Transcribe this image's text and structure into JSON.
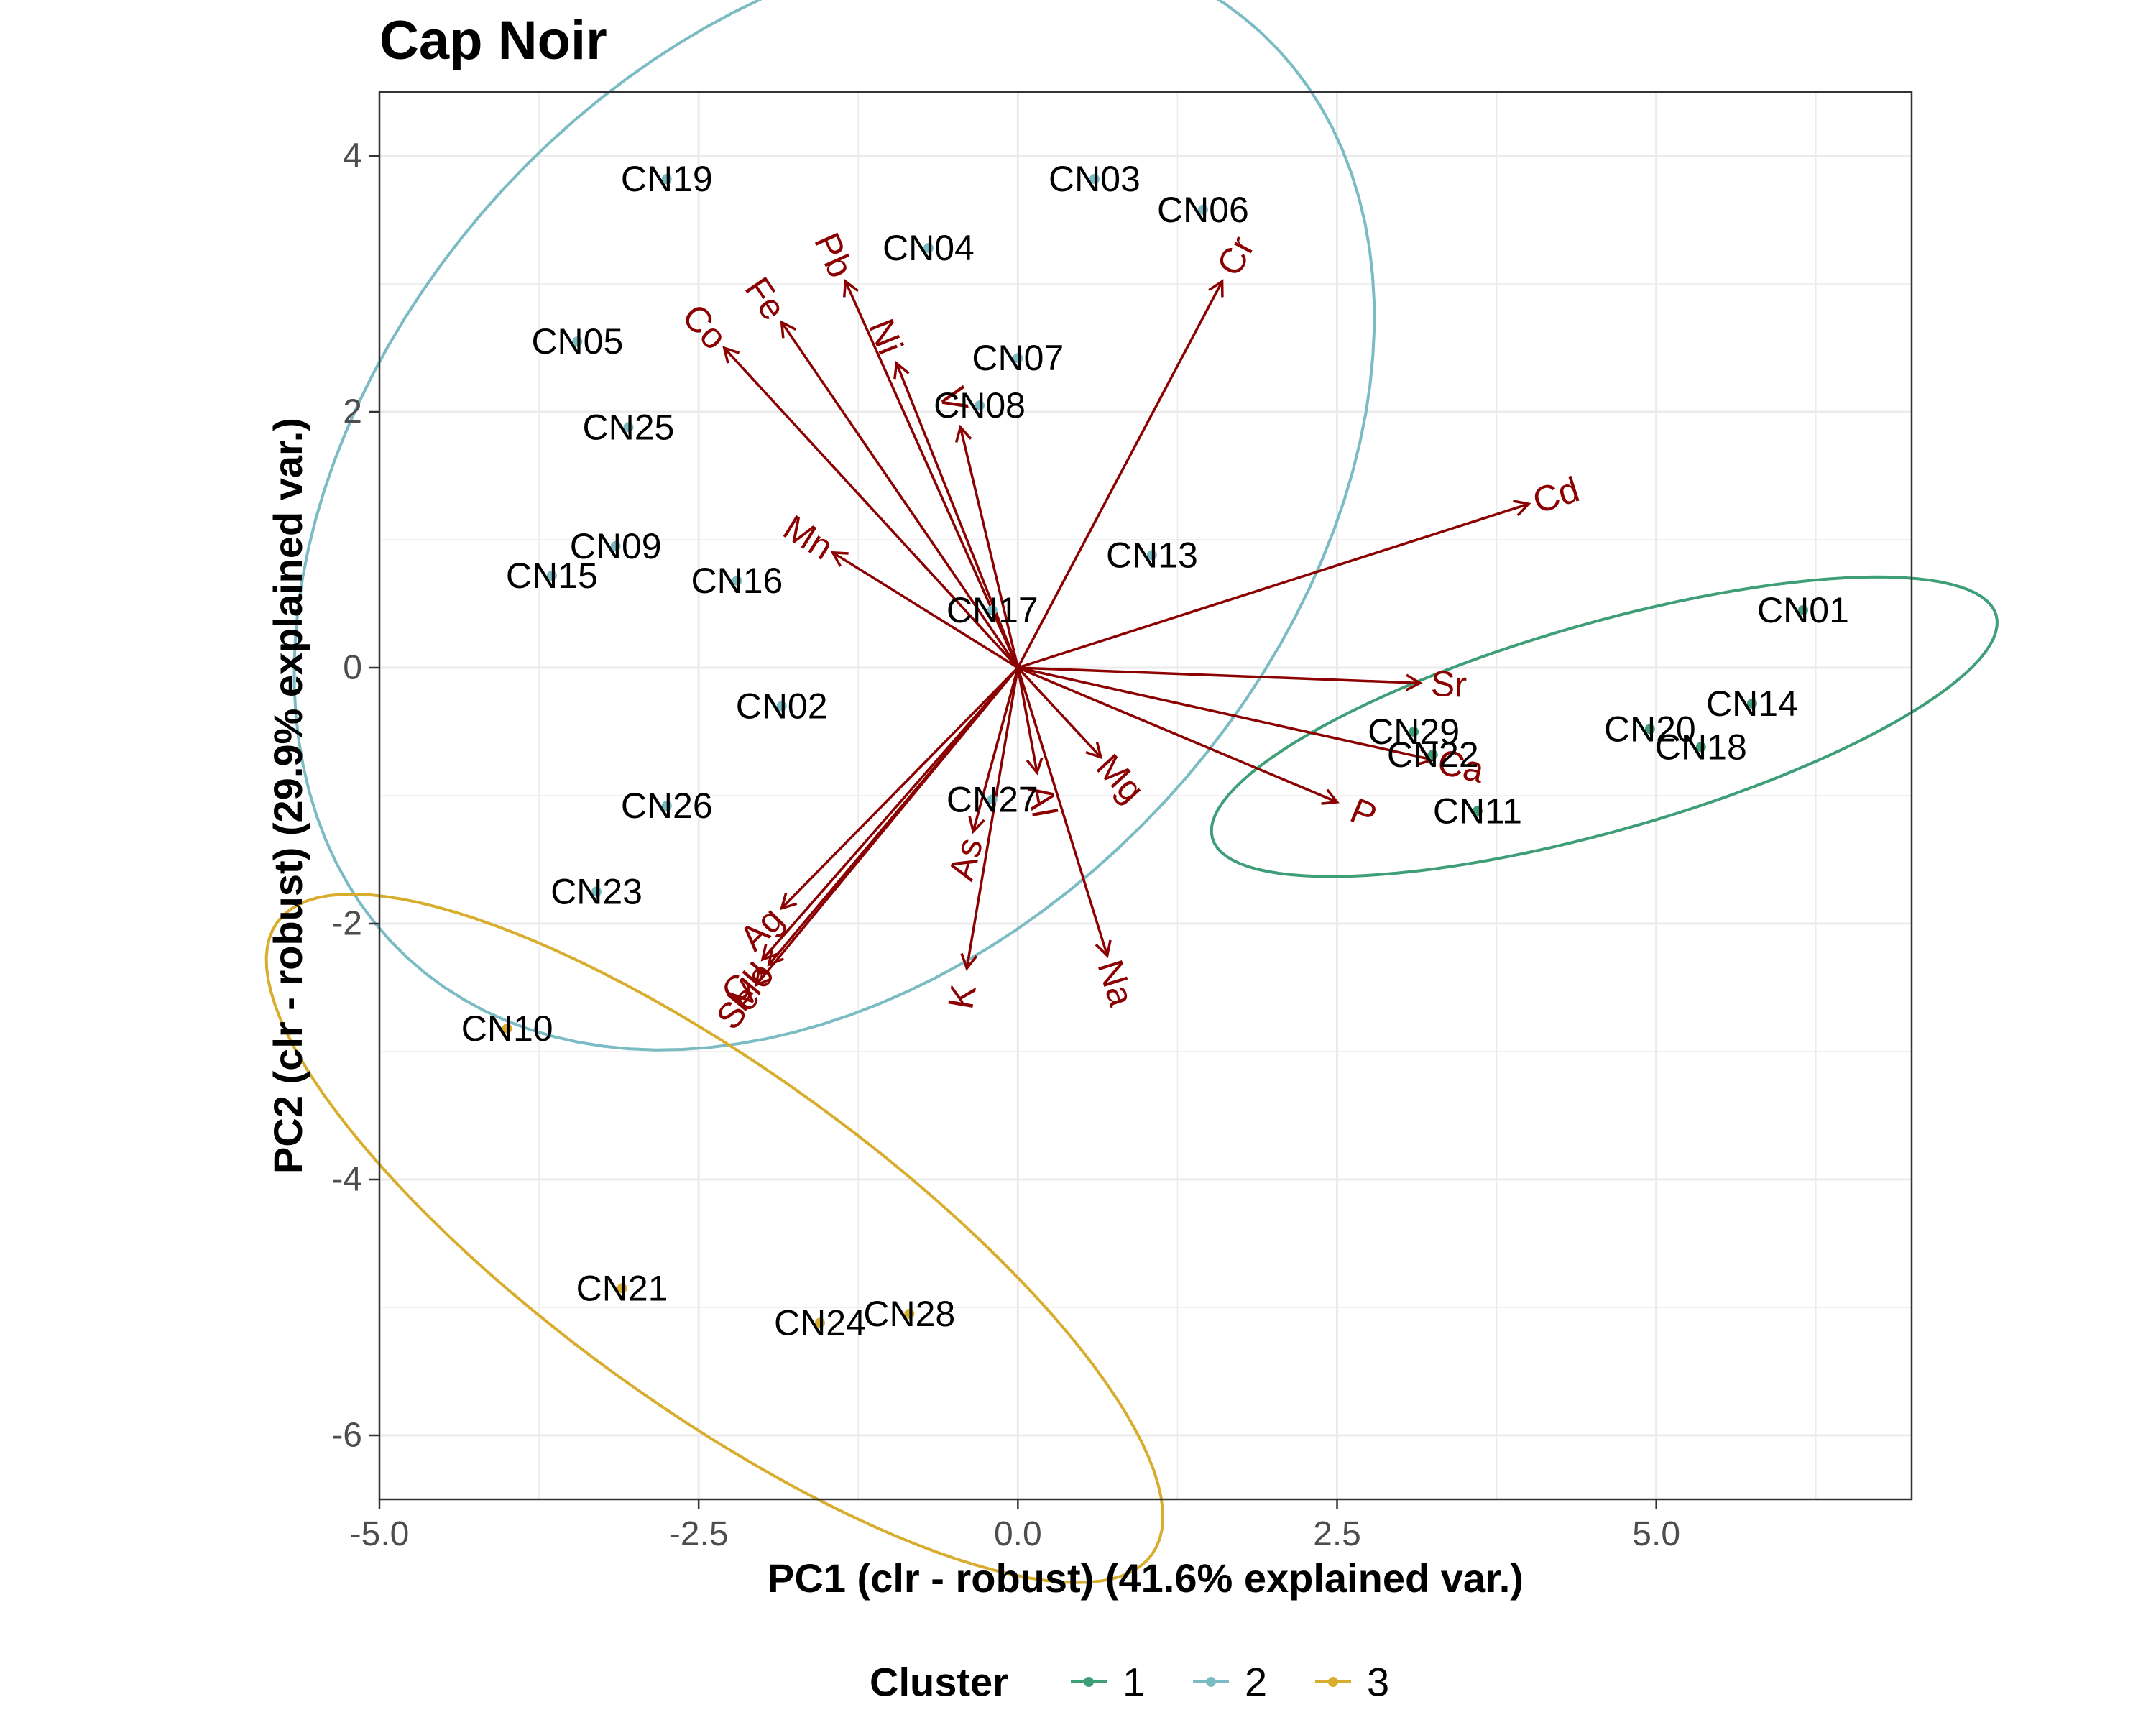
{
  "chart_data": {
    "type": "scatter",
    "title": "Cap Noir",
    "xlabel": "PC1 (clr - robust) (41.6% explained var.)",
    "ylabel": "PC2 (clr - robust) (29.9% explained var.)",
    "xlim": [
      -5.0,
      7.0
    ],
    "ylim": [
      -6.5,
      4.5
    ],
    "x_ticks": [
      -5.0,
      -2.5,
      0.0,
      2.5,
      5.0
    ],
    "x_tick_labels": [
      "-5.0",
      "-2.5",
      "0.0",
      "2.5",
      "5.0"
    ],
    "y_ticks": [
      -6,
      -4,
      -2,
      0,
      2,
      4
    ],
    "y_tick_labels": [
      "-6",
      "-4",
      "-2",
      "0",
      "2",
      "4"
    ],
    "grid": true,
    "legend": {
      "title": "Cluster",
      "position": "bottom",
      "entries": [
        {
          "label": "1",
          "color": "#3d9e78"
        },
        {
          "label": "2",
          "color": "#7bbcc4"
        },
        {
          "label": "3",
          "color": "#d8ad2e"
        }
      ]
    },
    "points": [
      {
        "label": "CN01",
        "x": 6.15,
        "y": 0.45,
        "cluster": "1"
      },
      {
        "label": "CN14",
        "x": 5.75,
        "y": -0.28,
        "cluster": "1"
      },
      {
        "label": "CN18",
        "x": 5.35,
        "y": -0.62,
        "cluster": "1"
      },
      {
        "label": "CN20",
        "x": 4.95,
        "y": -0.48,
        "cluster": "1"
      },
      {
        "label": "CN29",
        "x": 3.1,
        "y": -0.5,
        "cluster": "1"
      },
      {
        "label": "CN22",
        "x": 3.25,
        "y": -0.68,
        "cluster": "1"
      },
      {
        "label": "CN11",
        "x": 3.6,
        "y": -1.12,
        "cluster": "1"
      },
      {
        "label": "CN19",
        "x": -2.75,
        "y": 3.82,
        "cluster": "2"
      },
      {
        "label": "CN03",
        "x": 0.6,
        "y": 3.82,
        "cluster": "2"
      },
      {
        "label": "CN06",
        "x": 1.45,
        "y": 3.58,
        "cluster": "2"
      },
      {
        "label": "CN04",
        "x": -0.7,
        "y": 3.28,
        "cluster": "2"
      },
      {
        "label": "CN05",
        "x": -3.45,
        "y": 2.55,
        "cluster": "2"
      },
      {
        "label": "CN07",
        "x": 0.0,
        "y": 2.42,
        "cluster": "2"
      },
      {
        "label": "CN08",
        "x": -0.3,
        "y": 2.05,
        "cluster": "2"
      },
      {
        "label": "CN25",
        "x": -3.05,
        "y": 1.88,
        "cluster": "2"
      },
      {
        "label": "CN09",
        "x": -3.15,
        "y": 0.95,
        "cluster": "2"
      },
      {
        "label": "CN15",
        "x": -3.65,
        "y": 0.72,
        "cluster": "2"
      },
      {
        "label": "CN16",
        "x": -2.2,
        "y": 0.68,
        "cluster": "2"
      },
      {
        "label": "CN13",
        "x": 1.05,
        "y": 0.88,
        "cluster": "2"
      },
      {
        "label": "CN17",
        "x": -0.2,
        "y": 0.45,
        "cluster": "2"
      },
      {
        "label": "CN02",
        "x": -1.85,
        "y": -0.3,
        "cluster": "2"
      },
      {
        "label": "CN26",
        "x": -2.75,
        "y": -1.08,
        "cluster": "2"
      },
      {
        "label": "CN27",
        "x": -0.2,
        "y": -1.03,
        "cluster": "2"
      },
      {
        "label": "CN23",
        "x": -3.3,
        "y": -1.75,
        "cluster": "2"
      },
      {
        "label": "CN10",
        "x": -4.0,
        "y": -2.82,
        "cluster": "3"
      },
      {
        "label": "CN21",
        "x": -3.1,
        "y": -4.85,
        "cluster": "3"
      },
      {
        "label": "CN24",
        "x": -1.55,
        "y": -5.12,
        "cluster": "3"
      },
      {
        "label": "CN28",
        "x": -0.85,
        "y": -5.05,
        "cluster": "3"
      }
    ],
    "loadings": [
      {
        "label": "Cd",
        "x": 4.0,
        "y": 1.28
      },
      {
        "label": "Cr",
        "x": 1.6,
        "y": 3.02
      },
      {
        "label": "Pb",
        "x": -1.35,
        "y": 3.02
      },
      {
        "label": "Fe",
        "x": -1.85,
        "y": 2.7
      },
      {
        "label": "Co",
        "x": -2.3,
        "y": 2.5
      },
      {
        "label": "Ni",
        "x": -0.95,
        "y": 2.38
      },
      {
        "label": "V",
        "x": -0.45,
        "y": 1.88
      },
      {
        "label": "Mn",
        "x": -1.45,
        "y": 0.9
      },
      {
        "label": "Sr",
        "x": 3.15,
        "y": -0.12
      },
      {
        "label": "Ca",
        "x": 3.25,
        "y": -0.72
      },
      {
        "label": "P",
        "x": 2.5,
        "y": -1.05
      },
      {
        "label": "Mg",
        "x": 0.65,
        "y": -0.7
      },
      {
        "label": "Al",
        "x": 0.15,
        "y": -0.82
      },
      {
        "label": "As",
        "x": -0.35,
        "y": -1.28
      },
      {
        "label": "K",
        "x": -0.4,
        "y": -2.35
      },
      {
        "label": "Na",
        "x": 0.7,
        "y": -2.25
      },
      {
        "label": "Ag",
        "x": -1.85,
        "y": -1.88
      },
      {
        "label": "Cu",
        "x": -2.0,
        "y": -2.28
      },
      {
        "label": "Mo",
        "x": -1.95,
        "y": -2.32
      },
      {
        "label": "Se",
        "x": -2.05,
        "y": -2.48
      }
    ]
  }
}
